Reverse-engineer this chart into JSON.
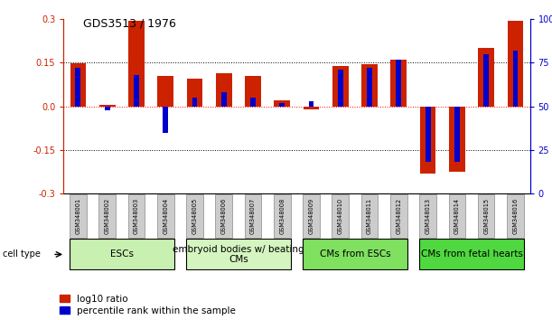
{
  "title": "GDS3513 / 1976",
  "samples": [
    "GSM348001",
    "GSM348002",
    "GSM348003",
    "GSM348004",
    "GSM348005",
    "GSM348006",
    "GSM348007",
    "GSM348008",
    "GSM348009",
    "GSM348010",
    "GSM348011",
    "GSM348012",
    "GSM348013",
    "GSM348014",
    "GSM348015",
    "GSM348016"
  ],
  "log10_ratio": [
    0.148,
    0.005,
    0.295,
    0.105,
    0.095,
    0.115,
    0.105,
    0.02,
    -0.01,
    0.14,
    0.145,
    0.16,
    -0.23,
    -0.225,
    0.2,
    0.295
  ],
  "percentile_rank": [
    72,
    48,
    68,
    35,
    55,
    58,
    55,
    52,
    53,
    71,
    72,
    77,
    18,
    18,
    80,
    82
  ],
  "ylim": [
    -0.3,
    0.3
  ],
  "yticks_left": [
    -0.3,
    -0.15,
    0.0,
    0.15,
    0.3
  ],
  "yticks_right": [
    0,
    25,
    50,
    75,
    100
  ],
  "hlines_black": [
    0.15,
    -0.15
  ],
  "hline_red": 0.0,
  "cell_type_groups": [
    {
      "label": "ESCs",
      "start": 0,
      "end": 3,
      "color": "#c8f0b0"
    },
    {
      "label": "embryoid bodies w/ beating\nCMs",
      "start": 4,
      "end": 7,
      "color": "#d0f5c0"
    },
    {
      "label": "CMs from ESCs",
      "start": 8,
      "end": 11,
      "color": "#80e860"
    },
    {
      "label": "CMs from fetal hearts",
      "start": 12,
      "end": 15,
      "color": "#55dd40"
    }
  ],
  "red_bar_width": 0.55,
  "blue_bar_width": 0.18,
  "red_color": "#cc2200",
  "blue_color": "#0000cc",
  "sample_box_color": "#cccccc",
  "sample_box_edge": "#888888",
  "tick_label_fontsize": 7,
  "title_fontsize": 9,
  "legend_fontsize": 7.5,
  "cell_type_fontsize": 7.5,
  "sample_fontsize": 4.8
}
